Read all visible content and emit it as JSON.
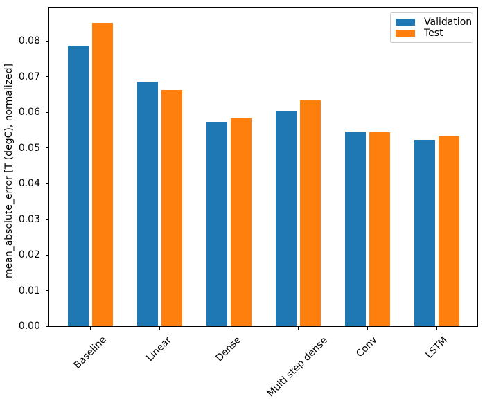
{
  "chart_data": {
    "type": "bar",
    "title": "",
    "xlabel": "",
    "ylabel": "mean_absolute_error [T (degC), normalized]",
    "categories": [
      "Baseline",
      "Linear",
      "Dense",
      "Multi step dense",
      "Conv",
      "LSTM"
    ],
    "series": [
      {
        "name": "Validation",
        "color": "#1f77b4",
        "values": [
          0.0785,
          0.0687,
          0.0573,
          0.0605,
          0.0547,
          0.0522
        ]
      },
      {
        "name": "Test",
        "color": "#ff7f0e",
        "values": [
          0.0852,
          0.0663,
          0.0584,
          0.0634,
          0.0545,
          0.0534
        ]
      }
    ],
    "ylim": [
      0,
      0.0894
    ],
    "yticks": [
      0,
      0.01,
      0.02,
      0.03,
      0.04,
      0.05,
      0.06,
      0.07,
      0.08
    ],
    "ytick_labels": [
      "0.00",
      "0.01",
      "0.02",
      "0.03",
      "0.04",
      "0.05",
      "0.06",
      "0.07",
      "0.08"
    ],
    "x_tick_rotation_deg": 45,
    "grid": false,
    "legend": {
      "position": "upper-right",
      "entries": [
        "Validation",
        "Test"
      ]
    },
    "axis_color": "#000000",
    "background_color": "#ffffff"
  }
}
